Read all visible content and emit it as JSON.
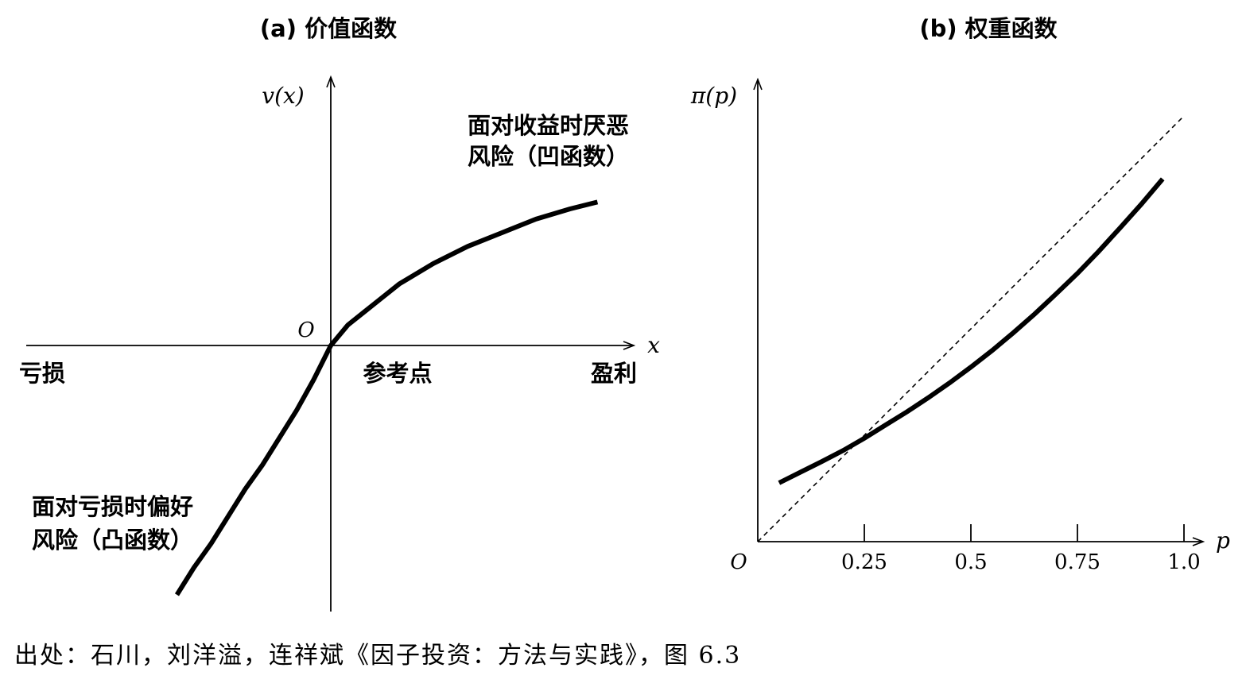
{
  "chart_data": [
    {
      "type": "line",
      "title": "(a) 价值函数",
      "ylabel": "v(x)",
      "xlabel": "x",
      "origin_label": "O",
      "axis_labels": {
        "left": "亏损",
        "center": "参考点",
        "right": "盈利"
      },
      "annotations": [
        {
          "id": "gain",
          "lines": [
            "面对收益时厌恶",
            "风险（凹函数）"
          ]
        },
        {
          "id": "loss",
          "lines": [
            "面对亏损时偏好",
            "风险（凸函数）"
          ]
        }
      ],
      "grid": false,
      "xlim": [
        -1,
        1
      ],
      "ylim": [
        -1,
        1
      ],
      "series": [
        {
          "values": [
            [
              -0.45,
              -0.73
            ],
            [
              -0.4,
              -0.65
            ],
            [
              -0.35,
              -0.58
            ],
            [
              -0.3,
              -0.5
            ],
            [
              -0.25,
              -0.42
            ],
            [
              -0.2,
              -0.35
            ],
            [
              -0.15,
              -0.27
            ],
            [
              -0.1,
              -0.19
            ],
            [
              -0.05,
              -0.1
            ],
            [
              0,
              0
            ],
            [
              0.05,
              0.06
            ],
            [
              0.1,
              0.1
            ],
            [
              0.15,
              0.14
            ],
            [
              0.2,
              0.18
            ],
            [
              0.3,
              0.24
            ],
            [
              0.4,
              0.29
            ],
            [
              0.5,
              0.33
            ],
            [
              0.6,
              0.37
            ],
            [
              0.7,
              0.4
            ],
            [
              0.78,
              0.42
            ]
          ]
        }
      ]
    },
    {
      "type": "line",
      "title": "(b) 权重函数",
      "ylabel": "π(p)",
      "xlabel": "p",
      "origin_label": "O",
      "x_ticks": [
        0.25,
        0.5,
        0.75,
        1.0
      ],
      "x_tick_labels": [
        "0.25",
        "0.5",
        "0.75",
        "1.0"
      ],
      "grid": false,
      "xlim": [
        0,
        1.02
      ],
      "ylim": [
        0,
        1.08
      ],
      "series": [
        {
          "style": "solid",
          "values": [
            [
              0.05,
              0.138
            ],
            [
              0.1,
              0.163
            ],
            [
              0.15,
              0.188
            ],
            [
              0.2,
              0.214
            ],
            [
              0.25,
              0.243
            ],
            [
              0.3,
              0.274
            ],
            [
              0.35,
              0.305
            ],
            [
              0.4,
              0.338
            ],
            [
              0.45,
              0.373
            ],
            [
              0.5,
              0.41
            ],
            [
              0.55,
              0.449
            ],
            [
              0.6,
              0.491
            ],
            [
              0.65,
              0.535
            ],
            [
              0.7,
              0.582
            ],
            [
              0.75,
              0.63
            ],
            [
              0.8,
              0.682
            ],
            [
              0.85,
              0.737
            ],
            [
              0.9,
              0.793
            ],
            [
              0.95,
              0.852
            ]
          ]
        },
        {
          "style": "dashed",
          "values": [
            [
              0,
              0
            ],
            [
              1.0,
              1.0
            ]
          ]
        }
      ]
    }
  ],
  "source": "出处：石川，刘洋溢，连祥斌《因子投资：方法与实践》，图 6.3"
}
